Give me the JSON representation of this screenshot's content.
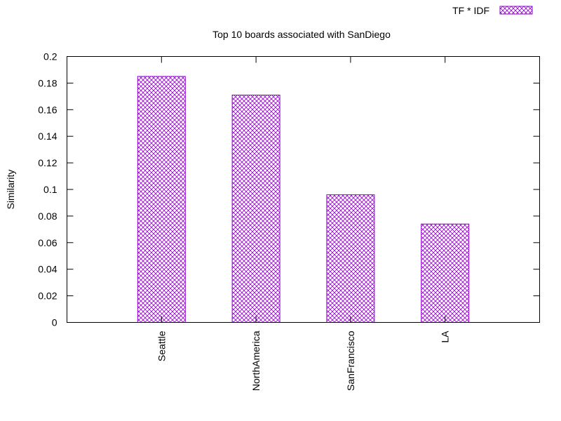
{
  "chart_data": {
    "type": "bar",
    "title": "Top 10 boards associated with SanDiego",
    "xlabel": "",
    "ylabel": "Similarity",
    "categories": [
      "Seattle",
      "NorthAmerica",
      "SanFrancisco",
      "LA"
    ],
    "series": [
      {
        "name": "TF * IDF",
        "values": [
          0.185,
          0.171,
          0.096,
          0.074
        ]
      }
    ],
    "ylim": [
      0,
      0.2
    ],
    "yticks": [
      "0",
      "0.02",
      "0.04",
      "0.06",
      "0.08",
      "0.1",
      "0.12",
      "0.14",
      "0.16",
      "0.18",
      "0.2"
    ],
    "grid": false,
    "legend_position": "top-right",
    "bar_color": "#9400d3",
    "bar_pattern": "crosshatch"
  }
}
